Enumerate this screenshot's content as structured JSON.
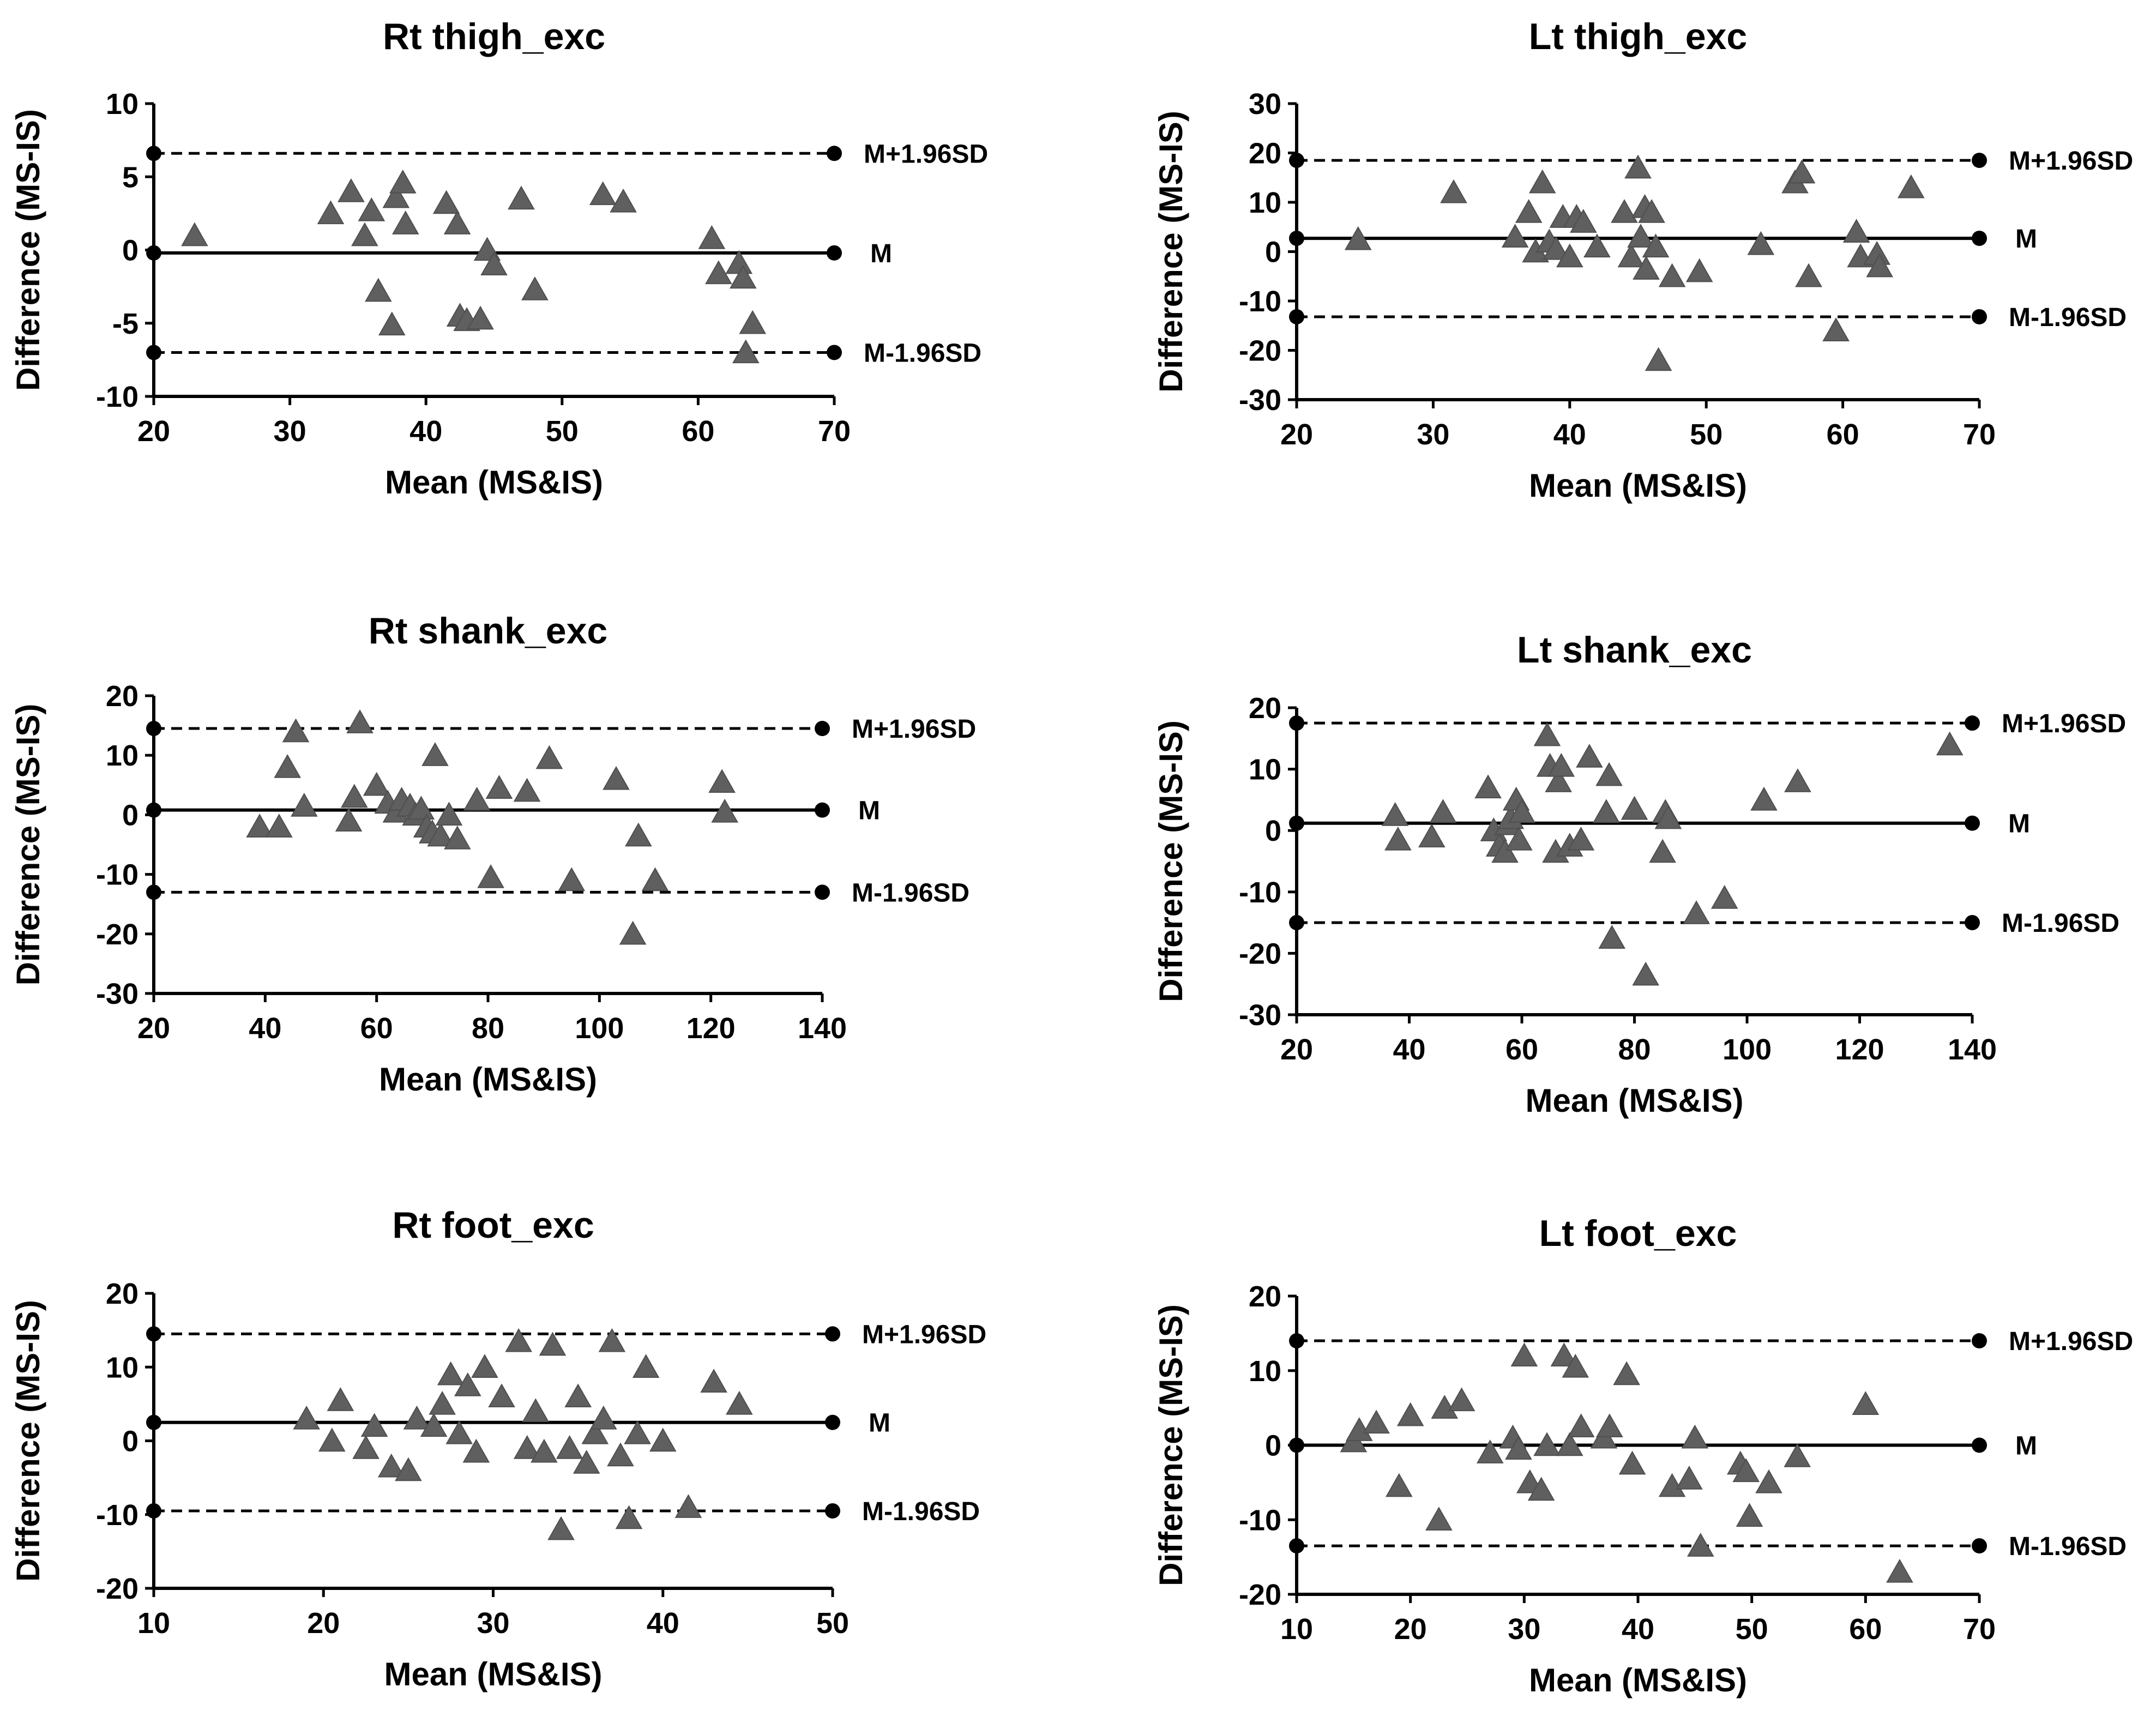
{
  "chart_data": [
    {
      "type": "scatter",
      "title": "Rt thigh_exc",
      "xlabel": "Mean (MS&IS)",
      "ylabel": "Difference (MS-IS)",
      "xlim": [
        20,
        70
      ],
      "xticks": [
        20,
        30,
        40,
        50,
        60,
        70
      ],
      "ylim": [
        -10,
        10
      ],
      "yticks": [
        -10,
        -5,
        0,
        5,
        10
      ],
      "ref_lines": [
        {
          "name": "upper",
          "label": "M+1.96SD",
          "value": 6.6,
          "style": "dashed"
        },
        {
          "name": "mean",
          "label": "M",
          "value": -0.2,
          "style": "solid"
        },
        {
          "name": "lower",
          "label": "M-1.96SD",
          "value": -7.0,
          "style": "dashed"
        }
      ],
      "points": [
        [
          23,
          1
        ],
        [
          33,
          2.5
        ],
        [
          34.5,
          4
        ],
        [
          35.5,
          1
        ],
        [
          36,
          2.7
        ],
        [
          36.5,
          -2.8
        ],
        [
          37.5,
          -5.1
        ],
        [
          37.8,
          3.6
        ],
        [
          38.3,
          4.6
        ],
        [
          38.5,
          1.8
        ],
        [
          41.5,
          3.2
        ],
        [
          42.3,
          1.8
        ],
        [
          42.5,
          -4.5
        ],
        [
          43,
          -4.8
        ],
        [
          44,
          -4.7
        ],
        [
          44.5,
          0
        ],
        [
          45,
          -1
        ],
        [
          47,
          3.5
        ],
        [
          48,
          -2.7
        ],
        [
          53,
          3.8
        ],
        [
          54.5,
          3.3
        ],
        [
          61,
          0.8
        ],
        [
          61.5,
          -1.6
        ],
        [
          63,
          -0.9
        ],
        [
          63.3,
          -1.9
        ],
        [
          63.5,
          -7
        ],
        [
          64,
          -5
        ]
      ]
    },
    {
      "type": "scatter",
      "title": "Lt thigh_exc",
      "xlabel": "Mean (MS&IS)",
      "ylabel": "Difference (MS-IS)",
      "xlim": [
        20,
        70
      ],
      "xticks": [
        20,
        30,
        40,
        50,
        60,
        70
      ],
      "ylim": [
        -30,
        30
      ],
      "yticks": [
        -30,
        -20,
        -10,
        0,
        10,
        20,
        30
      ],
      "ref_lines": [
        {
          "name": "upper",
          "label": "M+1.96SD",
          "value": 18.5,
          "style": "dashed"
        },
        {
          "name": "mean",
          "label": "M",
          "value": 2.7,
          "style": "solid"
        },
        {
          "name": "lower",
          "label": "M-1.96SD",
          "value": -13.2,
          "style": "dashed"
        }
      ],
      "points": [
        [
          24.5,
          2.5
        ],
        [
          31.5,
          12
        ],
        [
          36,
          3
        ],
        [
          37,
          8
        ],
        [
          37.5,
          0
        ],
        [
          38,
          14
        ],
        [
          38.5,
          2
        ],
        [
          39,
          0.5
        ],
        [
          39.5,
          7
        ],
        [
          40,
          -1
        ],
        [
          40.5,
          7
        ],
        [
          41,
          6
        ],
        [
          42,
          1
        ],
        [
          44,
          8
        ],
        [
          44.5,
          -1
        ],
        [
          45,
          17
        ],
        [
          45.2,
          3
        ],
        [
          45.5,
          9
        ],
        [
          46,
          8
        ],
        [
          46.3,
          1
        ],
        [
          46.5,
          -22
        ],
        [
          47.5,
          -5
        ],
        [
          49.5,
          -4
        ],
        [
          54,
          1.5
        ],
        [
          56.5,
          14
        ],
        [
          57,
          16
        ],
        [
          57.5,
          -5
        ],
        [
          59.5,
          -16
        ],
        [
          61,
          4
        ],
        [
          61.3,
          -1
        ],
        [
          62.5,
          -0.5
        ],
        [
          62.7,
          -3
        ],
        [
          65,
          13
        ],
        [
          45.6,
          -3.5
        ]
      ]
    },
    {
      "type": "scatter",
      "title": "Rt shank_exc",
      "xlabel": "Mean (MS&IS)",
      "ylabel": "Difference (MS-IS)",
      "xlim": [
        20,
        140
      ],
      "xticks": [
        20,
        40,
        60,
        80,
        100,
        120,
        140
      ],
      "ylim": [
        -30,
        20
      ],
      "yticks": [
        -30,
        -20,
        -10,
        0,
        10,
        20
      ],
      "ref_lines": [
        {
          "name": "upper",
          "label": "M+1.96SD",
          "value": 14.5,
          "style": "dashed"
        },
        {
          "name": "mean",
          "label": "M",
          "value": 0.8,
          "style": "solid"
        },
        {
          "name": "lower",
          "label": "M-1.96SD",
          "value": -13,
          "style": "dashed"
        }
      ],
      "points": [
        [
          39,
          -2
        ],
        [
          42.5,
          -2
        ],
        [
          44,
          8
        ],
        [
          45.5,
          14
        ],
        [
          47,
          1.5
        ],
        [
          55,
          -1
        ],
        [
          56,
          3
        ],
        [
          57,
          15.5
        ],
        [
          60,
          5
        ],
        [
          62,
          2
        ],
        [
          63.5,
          0.5
        ],
        [
          64.5,
          2.5
        ],
        [
          66,
          1.5
        ],
        [
          67,
          0
        ],
        [
          68,
          1
        ],
        [
          69,
          -2
        ],
        [
          70,
          -3
        ],
        [
          70.5,
          10
        ],
        [
          71.5,
          -3.5
        ],
        [
          73,
          0
        ],
        [
          74.5,
          -4
        ],
        [
          78,
          2.5
        ],
        [
          80.5,
          -10.5
        ],
        [
          82,
          4.5
        ],
        [
          87,
          4
        ],
        [
          91,
          9.5
        ],
        [
          95,
          -11
        ],
        [
          103,
          6
        ],
        [
          106,
          -20
        ],
        [
          107,
          -3.5
        ],
        [
          110,
          -11
        ],
        [
          122,
          5.5
        ],
        [
          122.5,
          0.5
        ]
      ]
    },
    {
      "type": "scatter",
      "title": "Lt shank_exc",
      "xlabel": "Mean (MS&IS)",
      "ylabel": "Difference (MS-IS)",
      "xlim": [
        20,
        140
      ],
      "xticks": [
        20,
        40,
        60,
        80,
        100,
        120,
        140
      ],
      "ylim": [
        -30,
        20
      ],
      "yticks": [
        -30,
        -20,
        -10,
        0,
        10,
        20
      ],
      "ref_lines": [
        {
          "name": "upper",
          "label": "M+1.96SD",
          "value": 17.5,
          "style": "dashed"
        },
        {
          "name": "mean",
          "label": "M",
          "value": 1.2,
          "style": "solid"
        },
        {
          "name": "lower",
          "label": "M-1.96SD",
          "value": -15,
          "style": "dashed"
        }
      ],
      "points": [
        [
          37.5,
          2.5
        ],
        [
          38,
          -1.5
        ],
        [
          44,
          -1
        ],
        [
          46,
          3
        ],
        [
          54,
          7
        ],
        [
          55,
          0
        ],
        [
          56,
          -2.5
        ],
        [
          57,
          -3.5
        ],
        [
          57.5,
          1
        ],
        [
          58,
          2
        ],
        [
          59,
          5
        ],
        [
          59.5,
          -1.5
        ],
        [
          60,
          3
        ],
        [
          64.5,
          15.5
        ],
        [
          65,
          10.5
        ],
        [
          66,
          -3.5
        ],
        [
          66.5,
          8
        ],
        [
          67,
          10.5
        ],
        [
          68.5,
          -2.5
        ],
        [
          70.5,
          -1.5
        ],
        [
          72,
          12
        ],
        [
          75,
          3
        ],
        [
          75.5,
          9
        ],
        [
          76,
          -17.5
        ],
        [
          80,
          3.5
        ],
        [
          82,
          -23.5
        ],
        [
          85,
          -3.5
        ],
        [
          85.5,
          3
        ],
        [
          86,
          2
        ],
        [
          91,
          -13.5
        ],
        [
          96,
          -11
        ],
        [
          103,
          5
        ],
        [
          109,
          8
        ],
        [
          136,
          14
        ]
      ]
    },
    {
      "type": "scatter",
      "title": "Rt foot_exc",
      "xlabel": "Mean (MS&IS)",
      "ylabel": "Difference (MS-IS)",
      "xlim": [
        10,
        50
      ],
      "xticks": [
        10,
        20,
        30,
        40,
        50
      ],
      "ylim": [
        -20,
        20
      ],
      "yticks": [
        -20,
        -10,
        0,
        10,
        20
      ],
      "ref_lines": [
        {
          "name": "upper",
          "label": "M+1.96SD",
          "value": 14.5,
          "style": "dashed"
        },
        {
          "name": "mean",
          "label": "M",
          "value": 2.5,
          "style": "solid"
        },
        {
          "name": "lower",
          "label": "M-1.96SD",
          "value": -9.5,
          "style": "dashed"
        }
      ],
      "points": [
        [
          19,
          3
        ],
        [
          20.5,
          0
        ],
        [
          21,
          5.5
        ],
        [
          22.5,
          -1
        ],
        [
          23,
          2
        ],
        [
          24,
          -3.5
        ],
        [
          25,
          -4
        ],
        [
          25.5,
          3
        ],
        [
          26.5,
          2
        ],
        [
          27,
          5
        ],
        [
          27.5,
          9
        ],
        [
          28,
          1
        ],
        [
          28.5,
          7.5
        ],
        [
          29,
          -1.5
        ],
        [
          29.5,
          10
        ],
        [
          30.5,
          6
        ],
        [
          31.5,
          13.5
        ],
        [
          32,
          -1
        ],
        [
          32.5,
          4
        ],
        [
          33,
          -1.5
        ],
        [
          33.5,
          13
        ],
        [
          34,
          -12
        ],
        [
          34.5,
          -1
        ],
        [
          35,
          6
        ],
        [
          35.5,
          -3
        ],
        [
          36,
          1
        ],
        [
          36.5,
          3
        ],
        [
          37,
          13.5
        ],
        [
          37.5,
          -2
        ],
        [
          38,
          -10.5
        ],
        [
          38.5,
          1
        ],
        [
          39,
          10
        ],
        [
          40,
          0
        ],
        [
          41.5,
          -9
        ],
        [
          43,
          8
        ],
        [
          44.5,
          5
        ]
      ]
    },
    {
      "type": "scatter",
      "title": "Lt foot_exc",
      "xlabel": "Mean (MS&IS)",
      "ylabel": "Difference (MS-IS)",
      "xlim": [
        10,
        70
      ],
      "xticks": [
        10,
        20,
        30,
        40,
        50,
        60,
        70
      ],
      "ylim": [
        -20,
        20
      ],
      "yticks": [
        -20,
        -10,
        0,
        10,
        20
      ],
      "ref_lines": [
        {
          "name": "upper",
          "label": "M+1.96SD",
          "value": 14,
          "style": "dashed"
        },
        {
          "name": "mean",
          "label": "M",
          "value": 0,
          "style": "solid"
        },
        {
          "name": "lower",
          "label": "M-1.96SD",
          "value": -13.5,
          "style": "dashed"
        }
      ],
      "points": [
        [
          15,
          0.5
        ],
        [
          15.5,
          2
        ],
        [
          17,
          3
        ],
        [
          19,
          -5.5
        ],
        [
          20,
          4
        ],
        [
          22.5,
          -10
        ],
        [
          23,
          5
        ],
        [
          24.5,
          6
        ],
        [
          27,
          -1
        ],
        [
          29,
          1
        ],
        [
          29.5,
          -0.5
        ],
        [
          30,
          12
        ],
        [
          30.5,
          -5
        ],
        [
          31.5,
          -6
        ],
        [
          32,
          0
        ],
        [
          33.5,
          12
        ],
        [
          34,
          0
        ],
        [
          34.5,
          10.5
        ],
        [
          35,
          2.5
        ],
        [
          37,
          1
        ],
        [
          37.5,
          2.5
        ],
        [
          39,
          9.5
        ],
        [
          39.5,
          -2.5
        ],
        [
          43,
          -5.5
        ],
        [
          44.5,
          -4.5
        ],
        [
          45,
          1
        ],
        [
          45.5,
          -13.5
        ],
        [
          49,
          -2.5
        ],
        [
          49.5,
          -3.5
        ],
        [
          49.8,
          -9.5
        ],
        [
          51.5,
          -5
        ],
        [
          54,
          -1.5
        ],
        [
          60,
          5.5
        ],
        [
          63,
          -17
        ]
      ]
    }
  ]
}
